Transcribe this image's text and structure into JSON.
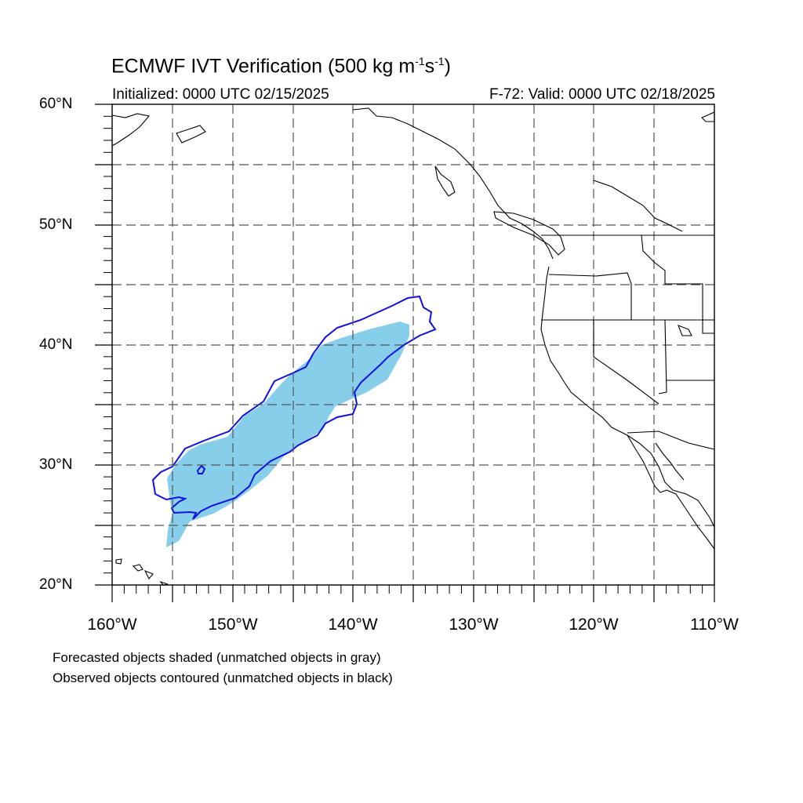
{
  "header": {
    "title_main": "ECMWF IVT Verification (500 kg m",
    "title_sup1": "-1",
    "title_mid": "s",
    "title_sup2": "-1",
    "title_end": ")",
    "initialized": "Initialized: 0000 UTC 02/15/2025",
    "valid": "F-72: Valid: 0000 UTC 02/18/2025"
  },
  "axes": {
    "lat_labels": [
      "60°N",
      "50°N",
      "40°N",
      "30°N",
      "20°N"
    ],
    "lon_labels": [
      "160°W",
      "150°W",
      "140°W",
      "130°W",
      "120°W",
      "110°W"
    ],
    "lat_range": [
      20,
      60
    ],
    "lon_range": [
      -160,
      -110
    ],
    "grid": "dashed, every 5 degrees"
  },
  "legend_notes": [
    "Forecasted objects shaded (unmatched objects in gray)",
    "Observed objects contoured (unmatched objects in black)"
  ],
  "colors": {
    "forecast_fill": "#87ceeb",
    "observed_contour": "#1010e0",
    "coastline": "#000000",
    "grid": "#555555"
  }
}
